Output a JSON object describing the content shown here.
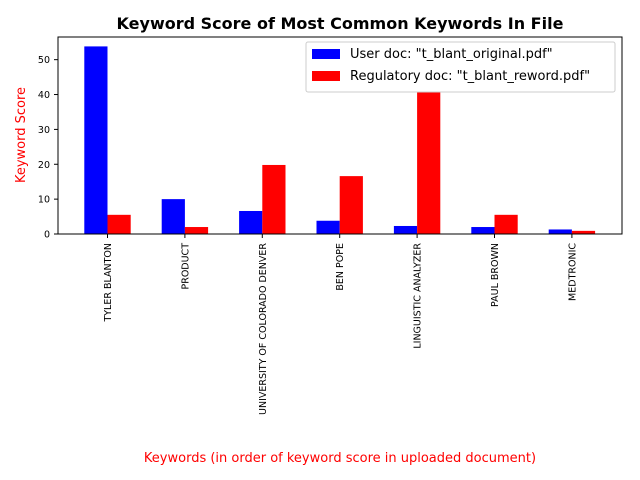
{
  "chart_data": {
    "type": "bar",
    "title": "Keyword Score of Most Common Keywords In File",
    "xlabel": "Keywords (in order of keyword score in uploaded document)",
    "ylabel": "Keyword Score",
    "ylim": [
      0,
      56.5
    ],
    "yticks": [
      0,
      10,
      20,
      30,
      40,
      50
    ],
    "grid": false,
    "legend_position": "top-right",
    "categories": [
      "TYLER BLANTON",
      "PRODUCT",
      "UNIVERSITY OF COLORADO DENVER",
      "BEN POPE",
      "LINGUISTIC ANALYZER",
      "PAUL BROWN",
      "MEDTRONIC"
    ],
    "series": [
      {
        "name": "User doc: \"t_blant_original.pdf\"",
        "color": "#0000ff",
        "values": [
          53.8,
          10.0,
          6.6,
          3.8,
          2.3,
          2.0,
          1.3
        ]
      },
      {
        "name": "Regulatory doc: \"t_blant_reword.pdf\"",
        "color": "#ff0000",
        "values": [
          5.5,
          2.0,
          19.8,
          16.6,
          44.5,
          5.5,
          0.9
        ]
      }
    ],
    "label_color": "#ff0000"
  }
}
